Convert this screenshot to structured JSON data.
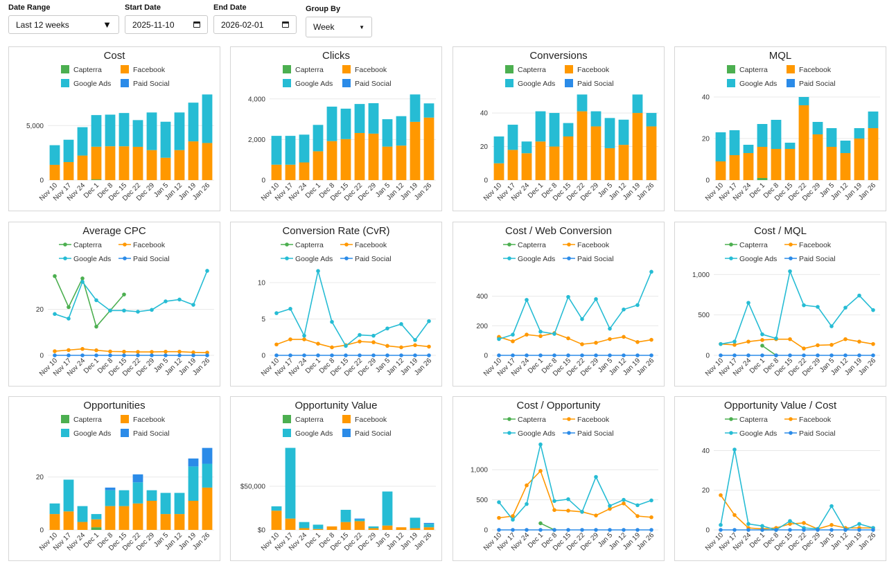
{
  "filters": {
    "date_range": {
      "label": "Date Range",
      "value": "Last 12 weeks"
    },
    "start_date": {
      "label": "Start Date",
      "value": "2025-11-10"
    },
    "end_date": {
      "label": "End Date",
      "value": "2026-02-01"
    },
    "group_by": {
      "label": "Group By",
      "value": "Week"
    }
  },
  "colors": {
    "Capterra": "#4caf50",
    "Facebook": "#ff9800",
    "Google Ads": "#26bcd4",
    "Paid Social": "#2b8be8",
    "grid": "#e8e8e8",
    "axis": "#888888"
  },
  "chart_data": [
    {
      "id": "cost",
      "type": "bar",
      "stacked": true,
      "title": "Cost",
      "ylim": [
        0,
        8000
      ],
      "yticks": [
        0,
        5000
      ],
      "categories": [
        "Nov 10",
        "Nov 17",
        "Nov 24",
        "Dec 1",
        "Dec 8",
        "Dec 15",
        "Dec 22",
        "Dec 29",
        "Jan 5",
        "Jan 12",
        "Jan 19",
        "Jan 26"
      ],
      "series": [
        {
          "name": "Capterra",
          "values": [
            0,
            0,
            0,
            60,
            0,
            0,
            0,
            0,
            0,
            0,
            0,
            0
          ]
        },
        {
          "name": "Facebook",
          "values": [
            1400,
            1650,
            2250,
            3000,
            3100,
            3100,
            3050,
            2750,
            2050,
            2750,
            3550,
            3400
          ]
        },
        {
          "name": "Google Ads",
          "values": [
            1800,
            2050,
            2600,
            2900,
            2900,
            3050,
            2450,
            3450,
            3300,
            3450,
            3550,
            4450
          ]
        },
        {
          "name": "Paid Social",
          "values": [
            0,
            0,
            0,
            0,
            0,
            0,
            0,
            0,
            0,
            0,
            0,
            0
          ]
        }
      ]
    },
    {
      "id": "clicks",
      "type": "bar",
      "stacked": true,
      "title": "Clicks",
      "ylim": [
        0,
        4300
      ],
      "yticks": [
        0,
        2000,
        4000
      ],
      "categories": [
        "Nov 10",
        "Nov 17",
        "Nov 24",
        "Dec 1",
        "Dec 8",
        "Dec 15",
        "Dec 22",
        "Dec 29",
        "Jan 5",
        "Jan 12",
        "Jan 19",
        "Jan 26"
      ],
      "series": [
        {
          "name": "Capterra",
          "values": [
            0,
            0,
            0,
            0,
            0,
            0,
            0,
            0,
            0,
            0,
            0,
            0
          ]
        },
        {
          "name": "Facebook",
          "values": [
            760,
            760,
            870,
            1420,
            1920,
            2020,
            2320,
            2290,
            1650,
            1700,
            2870,
            3080
          ]
        },
        {
          "name": "Google Ads",
          "values": [
            1420,
            1420,
            1370,
            1300,
            1700,
            1500,
            1430,
            1500,
            1350,
            1450,
            1350,
            700
          ]
        },
        {
          "name": "Paid Social",
          "values": [
            0,
            0,
            0,
            0,
            0,
            0,
            0,
            0,
            0,
            0,
            0,
            0
          ]
        }
      ]
    },
    {
      "id": "conversions",
      "type": "bar",
      "stacked": true,
      "title": "Conversions",
      "ylim": [
        0,
        52
      ],
      "yticks": [
        0,
        20,
        40
      ],
      "categories": [
        "Nov 10",
        "Nov 17",
        "Nov 24",
        "Dec 1",
        "Dec 8",
        "Dec 15",
        "Dec 22",
        "Dec 29",
        "Jan 5",
        "Jan 12",
        "Jan 19",
        "Jan 26"
      ],
      "series": [
        {
          "name": "Capterra",
          "values": [
            0,
            0,
            0,
            0,
            0,
            0,
            0,
            0,
            0,
            0,
            0,
            0
          ]
        },
        {
          "name": "Facebook",
          "values": [
            10,
            18,
            16,
            23,
            20,
            26,
            41,
            32,
            19,
            21,
            40,
            32
          ]
        },
        {
          "name": "Google Ads",
          "values": [
            16,
            15,
            7,
            18,
            20,
            8,
            10,
            9,
            18,
            15,
            11,
            8
          ]
        },
        {
          "name": "Paid Social",
          "values": [
            0,
            0,
            0,
            0,
            0,
            0,
            0,
            0,
            0,
            0,
            0,
            0
          ]
        }
      ]
    },
    {
      "id": "mql",
      "type": "bar",
      "stacked": true,
      "title": "MQL",
      "ylim": [
        0,
        42
      ],
      "yticks": [
        0,
        20,
        40
      ],
      "categories": [
        "Nov 10",
        "Nov 17",
        "Nov 24",
        "Dec 1",
        "Dec 8",
        "Dec 15",
        "Dec 22",
        "Dec 29",
        "Jan 5",
        "Jan 12",
        "Jan 19",
        "Jan 26"
      ],
      "series": [
        {
          "name": "Capterra",
          "values": [
            0,
            0,
            0,
            1,
            0,
            0,
            0,
            0,
            0,
            0,
            0,
            0
          ]
        },
        {
          "name": "Facebook",
          "values": [
            9,
            12,
            13,
            15,
            15,
            15,
            36,
            22,
            16,
            13,
            20,
            25
          ]
        },
        {
          "name": "Google Ads",
          "values": [
            14,
            12,
            4,
            11,
            14,
            3,
            4,
            6,
            9,
            6,
            5,
            8
          ]
        },
        {
          "name": "Paid Social",
          "values": [
            0,
            0,
            0,
            0,
            0,
            0,
            0,
            0,
            0,
            0,
            0,
            0
          ]
        }
      ]
    },
    {
      "id": "avg_cpc",
      "type": "line",
      "title": "Average CPC",
      "ylim": [
        0,
        38
      ],
      "yticks": [
        0,
        20
      ],
      "categories": [
        "Nov 10",
        "Nov 17",
        "Nov 24",
        "Dec 1",
        "Dec 8",
        "Dec 15",
        "Dec 22",
        "Dec 29",
        "Jan 5",
        "Jan 12",
        "Jan 19",
        "Jan 26"
      ],
      "series": [
        {
          "name": "Capterra",
          "values": [
            34.5,
            21,
            33.5,
            12.5,
            19.5,
            26.5,
            null,
            null,
            null,
            null,
            null,
            null
          ]
        },
        {
          "name": "Facebook",
          "values": [
            1.8,
            2.3,
            2.8,
            2.2,
            1.7,
            1.6,
            1.5,
            1.5,
            1.6,
            1.6,
            1.3,
            1.2
          ]
        },
        {
          "name": "Google Ads",
          "values": [
            18,
            16,
            32,
            24,
            19.5,
            19.5,
            19,
            19.8,
            23.5,
            24.3,
            22,
            36.8
          ]
        },
        {
          "name": "Paid Social",
          "values": [
            0,
            0,
            0,
            0,
            0,
            0,
            0,
            0,
            0,
            0,
            0,
            0
          ]
        }
      ]
    },
    {
      "id": "cvr",
      "type": "line",
      "title": "Conversion Rate (CvR)",
      "ylim": [
        0,
        12
      ],
      "yticks": [
        0,
        5,
        10
      ],
      "categories": [
        "Nov 10",
        "Nov 17",
        "Nov 24",
        "Dec 1",
        "Dec 8",
        "Dec 15",
        "Dec 22",
        "Dec 29",
        "Jan 5",
        "Jan 12",
        "Jan 19",
        "Jan 26"
      ],
      "series": [
        {
          "name": "Capterra",
          "values": [
            null,
            null,
            null,
            null,
            null,
            null,
            null,
            null,
            null,
            null,
            null,
            null
          ]
        },
        {
          "name": "Facebook",
          "values": [
            1.5,
            2.2,
            2.2,
            1.6,
            1.1,
            1.4,
            1.9,
            1.8,
            1.3,
            1.1,
            1.4,
            1.2
          ]
        },
        {
          "name": "Google Ads",
          "values": [
            5.8,
            6.4,
            2.7,
            11.6,
            4.6,
            1.3,
            2.8,
            2.7,
            3.7,
            4.3,
            2.1,
            4.7
          ]
        },
        {
          "name": "Paid Social",
          "values": [
            0,
            0,
            0,
            0,
            0,
            0,
            0,
            0,
            0,
            0,
            0,
            0
          ]
        }
      ]
    },
    {
      "id": "cost_web_conv",
      "type": "line",
      "title": "Cost / Web Conversion",
      "ylim": [
        0,
        590
      ],
      "yticks": [
        0,
        200,
        400
      ],
      "categories": [
        "Nov 10",
        "Nov 17",
        "Nov 24",
        "Dec 1",
        "Dec 8",
        "Dec 15",
        "Dec 22",
        "Dec 29",
        "Jan 5",
        "Jan 12",
        "Jan 19",
        "Jan 26"
      ],
      "series": [
        {
          "name": "Capterra",
          "values": [
            120,
            null,
            null,
            null,
            null,
            null,
            null,
            null,
            null,
            null,
            null,
            null
          ]
        },
        {
          "name": "Facebook",
          "values": [
            125,
            95,
            140,
            130,
            150,
            115,
            75,
            85,
            110,
            125,
            90,
            105
          ]
        },
        {
          "name": "Google Ads",
          "values": [
            110,
            140,
            375,
            160,
            145,
            395,
            245,
            380,
            180,
            310,
            340,
            565
          ]
        },
        {
          "name": "Paid Social",
          "values": [
            0,
            0,
            0,
            0,
            0,
            0,
            0,
            0,
            0,
            0,
            0,
            0
          ]
        }
      ]
    },
    {
      "id": "cost_mql",
      "type": "line",
      "title": "Cost / MQL",
      "ylim": [
        0,
        1080
      ],
      "yticks": [
        0,
        500,
        1000
      ],
      "categories": [
        "Nov 10",
        "Nov 17",
        "Nov 24",
        "Dec 1",
        "Dec 8",
        "Dec 15",
        "Dec 22",
        "Dec 29",
        "Jan 5",
        "Jan 12",
        "Jan 19",
        "Jan 26"
      ],
      "series": [
        {
          "name": "Capterra",
          "values": [
            null,
            null,
            null,
            120,
            0,
            null,
            null,
            null,
            null,
            null,
            null,
            null
          ]
        },
        {
          "name": "Facebook",
          "values": [
            140,
            130,
            170,
            190,
            200,
            200,
            85,
            125,
            130,
            200,
            170,
            140
          ]
        },
        {
          "name": "Google Ads",
          "values": [
            140,
            170,
            650,
            260,
            210,
            1040,
            620,
            600,
            360,
            590,
            740,
            560
          ]
        },
        {
          "name": "Paid Social",
          "values": [
            0,
            0,
            0,
            0,
            0,
            0,
            0,
            0,
            0,
            0,
            0,
            0
          ]
        }
      ]
    },
    {
      "id": "opportunities",
      "type": "bar",
      "stacked": true,
      "title": "Opportunities",
      "ylim": [
        0,
        33
      ],
      "yticks": [
        0,
        20
      ],
      "categories": [
        "Nov 10",
        "Nov 17",
        "Nov 24",
        "Dec 1",
        "Dec 8",
        "Dec 15",
        "Dec 22",
        "Dec 29",
        "Jan 5",
        "Jan 12",
        "Jan 19",
        "Jan 26"
      ],
      "series": [
        {
          "name": "Capterra",
          "values": [
            0,
            0,
            0,
            1,
            0,
            0,
            0,
            0,
            0,
            0,
            0,
            0
          ]
        },
        {
          "name": "Facebook",
          "values": [
            6,
            7,
            3,
            3,
            9,
            9,
            10,
            11,
            6,
            6,
            11,
            16
          ]
        },
        {
          "name": "Google Ads",
          "values": [
            4,
            12,
            6,
            2,
            6,
            6,
            8,
            4,
            8,
            8,
            13,
            9
          ]
        },
        {
          "name": "Paid Social",
          "values": [
            0,
            0,
            0,
            0,
            1,
            0,
            3,
            0,
            0,
            0,
            3,
            6
          ]
        }
      ]
    },
    {
      "id": "opp_value",
      "type": "bar",
      "stacked": true,
      "title": "Opportunity Value",
      "ylim": [
        0,
        100000
      ],
      "yticks": [
        0,
        50000
      ],
      "categories": [
        "Nov 10",
        "Nov 17",
        "Nov 24",
        "Dec 1",
        "Dec 8",
        "Dec 15",
        "Dec 22",
        "Dec 29",
        "Jan 5",
        "Jan 12",
        "Jan 19",
        "Jan 26"
      ],
      "series": [
        {
          "name": "Capterra",
          "values": [
            0,
            0,
            0,
            0,
            0,
            0,
            0,
            0,
            0,
            0,
            0,
            0
          ]
        },
        {
          "name": "Facebook",
          "values": [
            22000,
            13000,
            2000,
            1000,
            4000,
            9000,
            10000,
            2000,
            5000,
            3000,
            2000,
            3000
          ]
        },
        {
          "name": "Google Ads",
          "values": [
            5000,
            81000,
            7000,
            5000,
            0,
            14000,
            2000,
            2000,
            39000,
            0,
            12000,
            4000
          ]
        },
        {
          "name": "Paid Social",
          "values": [
            0,
            0,
            0,
            0,
            0,
            0,
            1000,
            0,
            0,
            0,
            0,
            1000
          ]
        }
      ]
    },
    {
      "id": "cost_opp",
      "type": "line",
      "title": "Cost / Opportunity",
      "ylim": [
        0,
        1450
      ],
      "yticks": [
        0,
        500,
        1000
      ],
      "categories": [
        "Nov 10",
        "Nov 17",
        "Nov 24",
        "Dec 1",
        "Dec 8",
        "Dec 15",
        "Dec 22",
        "Dec 29",
        "Jan 5",
        "Jan 12",
        "Jan 19",
        "Jan 26"
      ],
      "series": [
        {
          "name": "Capterra",
          "values": [
            null,
            null,
            null,
            110,
            0,
            null,
            null,
            null,
            null,
            null,
            null,
            null
          ]
        },
        {
          "name": "Facebook",
          "values": [
            200,
            230,
            740,
            980,
            330,
            320,
            300,
            240,
            350,
            440,
            230,
            210
          ]
        },
        {
          "name": "Google Ads",
          "values": [
            460,
            170,
            430,
            1420,
            480,
            510,
            300,
            880,
            400,
            500,
            410,
            490
          ]
        },
        {
          "name": "Paid Social",
          "values": [
            0,
            0,
            0,
            0,
            0,
            0,
            0,
            0,
            0,
            0,
            0,
            0
          ]
        }
      ]
    },
    {
      "id": "opp_value_cost",
      "type": "line",
      "title": "Opportunity Value / Cost",
      "ylim": [
        0,
        44
      ],
      "yticks": [
        0,
        20,
        40
      ],
      "categories": [
        "Nov 10",
        "Nov 17",
        "Nov 24",
        "Dec 1",
        "Dec 8",
        "Dec 15",
        "Dec 22",
        "Dec 29",
        "Jan 5",
        "Jan 12",
        "Jan 19",
        "Jan 26"
      ],
      "series": [
        {
          "name": "Capterra",
          "values": [
            null,
            null,
            null,
            0,
            0,
            null,
            null,
            null,
            null,
            null,
            null,
            null
          ]
        },
        {
          "name": "Facebook",
          "values": [
            17.5,
            7.5,
            1,
            0.5,
            1,
            3,
            3.5,
            0.5,
            2.5,
            1,
            1,
            1
          ]
        },
        {
          "name": "Google Ads",
          "values": [
            2.5,
            40.5,
            3,
            2,
            0,
            4.5,
            1,
            0.5,
            12,
            0,
            3,
            1
          ]
        },
        {
          "name": "Paid Social",
          "values": [
            0,
            0,
            0,
            0,
            0,
            0,
            0,
            0,
            0,
            0,
            0,
            0
          ]
        }
      ]
    }
  ]
}
